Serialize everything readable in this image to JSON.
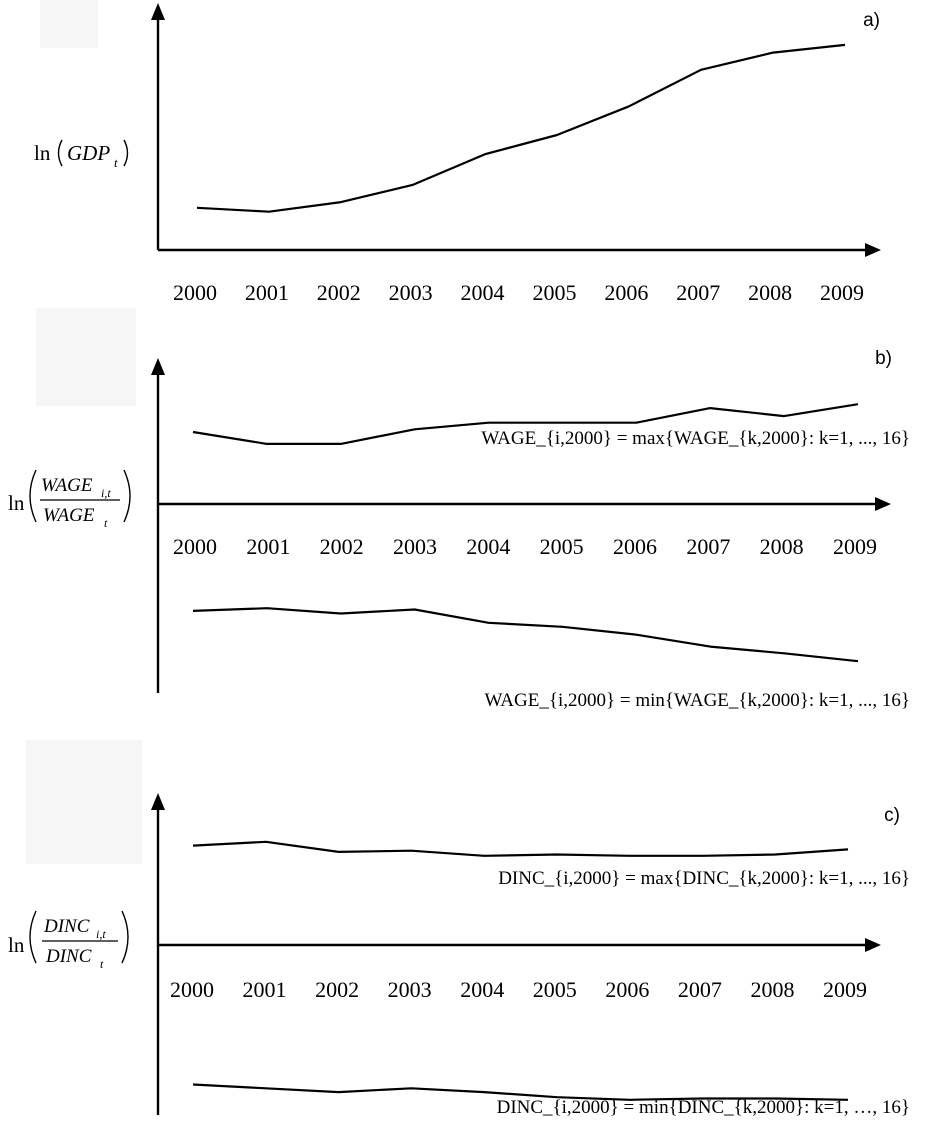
{
  "chart_data": [
    {
      "type": "line",
      "panel_label": "a)",
      "ylabel": "ln(GDP_t)",
      "x": [
        "2000",
        "2001",
        "2002",
        "2003",
        "2004",
        "2005",
        "2006",
        "2007",
        "2008",
        "2009"
      ],
      "series": [
        {
          "values": [
            0.22,
            0.2,
            0.25,
            0.34,
            0.5,
            0.6,
            0.75,
            0.94,
            1.03,
            1.07
          ]
        }
      ],
      "ylim": [
        0,
        1.2
      ],
      "grid": false
    },
    {
      "type": "line",
      "panel_label": "b)",
      "ylabel": "ln(WAGE_{i,t} / WAGE_t)",
      "x": [
        "2000",
        "2001",
        "2002",
        "2003",
        "2004",
        "2005",
        "2006",
        "2007",
        "2008",
        "2009"
      ],
      "series": [
        {
          "values": [
            0.67,
            0.58,
            0.58,
            0.69,
            0.74,
            0.74,
            0.74,
            0.85,
            0.79,
            0.88
          ]
        },
        {
          "values": [
            -0.68,
            -0.66,
            -0.7,
            -0.67,
            -0.77,
            -0.8,
            -0.86,
            -0.95,
            -1.0,
            -1.06
          ]
        }
      ],
      "annotations": [
        "WAGE_{i,2000} = max{WAGE_{k,2000}: k=1, ..., 16}",
        "WAGE_{i,2000} = min{WAGE_{k,2000}: k=1, ..., 16}"
      ],
      "ylim": [
        -1.3,
        1.1
      ],
      "grid": false
    },
    {
      "type": "line",
      "panel_label": "c)",
      "ylabel": "ln(DINC_{i,t} / DINC_t)",
      "x": [
        "2000",
        "2001",
        "2002",
        "2003",
        "2004",
        "2005",
        "2006",
        "2007",
        "2008",
        "2009"
      ],
      "series": [
        {
          "values": [
            0.82,
            0.85,
            0.77,
            0.78,
            0.74,
            0.75,
            0.74,
            0.74,
            0.75,
            0.79
          ]
        },
        {
          "values": [
            -1.06,
            -1.09,
            -1.12,
            -1.09,
            -1.12,
            -1.16,
            -1.18,
            -1.17,
            -1.17,
            -1.18
          ]
        }
      ],
      "annotations": [
        "DINC_{i,2000} = max{DINC_{k,2000}: k=1, ..., 16}",
        "DINC_{i,2000} = min{DINC_{k,2000}: k=1, …, 16}"
      ],
      "ylim": [
        -1.3,
        1.1
      ],
      "grid": false
    }
  ]
}
